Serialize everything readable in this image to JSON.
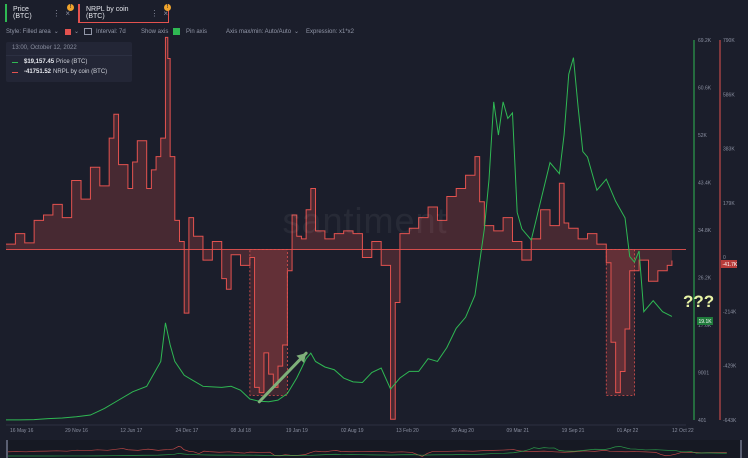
{
  "tabs": [
    {
      "label": "Price (BTC)",
      "color": "#2fb853",
      "badge": "!"
    },
    {
      "label": "NRPL by coin (BTC)",
      "color": "#e3524f",
      "badge": "!"
    }
  ],
  "toolbar": {
    "style_label": "Style: Filled area",
    "interval_label": "Interval: 7d",
    "show_axis_label": "Show axis",
    "pin_axis_label": "Pin axis",
    "axis_max_label": "Axis max/min: Auto/Auto",
    "expression_label": "Expression: x1*x2"
  },
  "tooltip": {
    "date": "13:00, October 12, 2022",
    "price_value": "$19,157.45",
    "price_label": "Price (BTC)",
    "nrpl_value": "-41751.52",
    "nrpl_label": "NRPL by coin (BTC)"
  },
  "watermark": "santiment",
  "annotation_text": "???",
  "colors": {
    "background": "#1b1e2b",
    "price": "#2fb853",
    "nrpl": "#e3524f",
    "nrpl_fill": "#4a2830",
    "badge": "#f0a42c",
    "arrow": "#7fb07a"
  },
  "chart_data": {
    "type": "line",
    "x_tick_labels": [
      "16 May 16",
      "29 Nov 16",
      "12 Jun 17",
      "24 Dec 17",
      "08 Jul 18",
      "19 Jan 19",
      "02 Aug 19",
      "13 Feb 20",
      "26 Aug 20",
      "09 Mar 21",
      "19 Sep 21",
      "01 Apr 22",
      "12 Oct 22"
    ],
    "series": [
      {
        "name": "Price (BTC)",
        "axis": "left",
        "axis_ticks": [
          "69.2K",
          "60.6K",
          "52K",
          "43.4K",
          "34.8K",
          "26.2K",
          "17.6K",
          "9001",
          "401"
        ],
        "last_value_label": "19.1K",
        "points": [
          [
            0,
            420
          ],
          [
            6,
            430
          ],
          [
            12,
            480
          ],
          [
            18,
            650
          ],
          [
            24,
            760
          ],
          [
            30,
            1000
          ],
          [
            36,
            1300
          ],
          [
            42,
            2500
          ],
          [
            48,
            4000
          ],
          [
            54,
            5500
          ],
          [
            60,
            6500
          ],
          [
            66,
            11000
          ],
          [
            68,
            18000
          ],
          [
            70,
            14000
          ],
          [
            72,
            11000
          ],
          [
            76,
            8500
          ],
          [
            80,
            7500
          ],
          [
            84,
            6500
          ],
          [
            88,
            6400
          ],
          [
            92,
            6300
          ],
          [
            96,
            6500
          ],
          [
            100,
            5800
          ],
          [
            104,
            4200
          ],
          [
            108,
            3800
          ],
          [
            112,
            3700
          ],
          [
            116,
            4000
          ],
          [
            120,
            5200
          ],
          [
            124,
            8000
          ],
          [
            128,
            11500
          ],
          [
            130,
            12500
          ],
          [
            132,
            11000
          ],
          [
            136,
            10000
          ],
          [
            140,
            9500
          ],
          [
            144,
            8000
          ],
          [
            148,
            7300
          ],
          [
            152,
            7200
          ],
          [
            156,
            9000
          ],
          [
            160,
            9800
          ],
          [
            164,
            6000
          ],
          [
            168,
            8000
          ],
          [
            172,
            9200
          ],
          [
            176,
            9200
          ],
          [
            180,
            11500
          ],
          [
            184,
            11000
          ],
          [
            188,
            13500
          ],
          [
            192,
            17000
          ],
          [
            196,
            19000
          ],
          [
            200,
            23000
          ],
          [
            204,
            35000
          ],
          [
            206,
            44000
          ],
          [
            208,
            58000
          ],
          [
            210,
            52000
          ],
          [
            212,
            58000
          ],
          [
            214,
            55000
          ],
          [
            216,
            56000
          ],
          [
            218,
            38000
          ],
          [
            220,
            35000
          ],
          [
            224,
            33000
          ],
          [
            228,
            40000
          ],
          [
            232,
            47000
          ],
          [
            236,
            45000
          ],
          [
            238,
            52000
          ],
          [
            240,
            63000
          ],
          [
            242,
            66000
          ],
          [
            244,
            57000
          ],
          [
            246,
            49000
          ],
          [
            248,
            48000
          ],
          [
            252,
            42000
          ],
          [
            256,
            44000
          ],
          [
            260,
            40000
          ],
          [
            264,
            37000
          ],
          [
            266,
            30000
          ],
          [
            268,
            29000
          ],
          [
            270,
            31000
          ],
          [
            272,
            20000
          ],
          [
            276,
            22000
          ],
          [
            280,
            20000
          ],
          [
            284,
            19157
          ]
        ]
      },
      {
        "name": "NRPL by coin (BTC)",
        "axis": "right",
        "axis_ticks": [
          "790K",
          "586K",
          "383K",
          "179K",
          "0",
          "-214K",
          "-429K",
          "-643K"
        ],
        "last_value_label": "-41.7K",
        "points": [
          [
            0,
            20000
          ],
          [
            4,
            60000
          ],
          [
            8,
            25000
          ],
          [
            12,
            110000
          ],
          [
            16,
            130000
          ],
          [
            20,
            170000
          ],
          [
            24,
            120000
          ],
          [
            28,
            260000
          ],
          [
            32,
            190000
          ],
          [
            36,
            310000
          ],
          [
            40,
            240000
          ],
          [
            44,
            420000
          ],
          [
            46,
            510000
          ],
          [
            48,
            320000
          ],
          [
            52,
            230000
          ],
          [
            54,
            330000
          ],
          [
            56,
            410000
          ],
          [
            60,
            230000
          ],
          [
            62,
            300000
          ],
          [
            64,
            350000
          ],
          [
            66,
            420000
          ],
          [
            68,
            800000
          ],
          [
            69,
            720000
          ],
          [
            70,
            350000
          ],
          [
            72,
            110000
          ],
          [
            74,
            30000
          ],
          [
            76,
            -240000
          ],
          [
            78,
            120000
          ],
          [
            80,
            50000
          ],
          [
            84,
            -40000
          ],
          [
            88,
            30000
          ],
          [
            92,
            -110000
          ],
          [
            94,
            -150000
          ],
          [
            96,
            -20000
          ],
          [
            100,
            -60000
          ],
          [
            104,
            -30000
          ],
          [
            106,
            -520000
          ],
          [
            108,
            -540000
          ],
          [
            110,
            -390000
          ],
          [
            112,
            -470000
          ],
          [
            114,
            -520000
          ],
          [
            116,
            -440000
          ],
          [
            118,
            -360000
          ],
          [
            120,
            -80000
          ],
          [
            122,
            130000
          ],
          [
            124,
            50000
          ],
          [
            126,
            40000
          ],
          [
            128,
            150000
          ],
          [
            130,
            230000
          ],
          [
            132,
            70000
          ],
          [
            136,
            40000
          ],
          [
            140,
            60000
          ],
          [
            144,
            70000
          ],
          [
            148,
            60000
          ],
          [
            152,
            -30000
          ],
          [
            156,
            30000
          ],
          [
            160,
            -60000
          ],
          [
            164,
            -640000
          ],
          [
            166,
            -200000
          ],
          [
            168,
            60000
          ],
          [
            172,
            80000
          ],
          [
            176,
            120000
          ],
          [
            180,
            160000
          ],
          [
            184,
            110000
          ],
          [
            188,
            200000
          ],
          [
            192,
            230000
          ],
          [
            196,
            280000
          ],
          [
            200,
            350000
          ],
          [
            202,
            180000
          ],
          [
            204,
            90000
          ],
          [
            208,
            70000
          ],
          [
            212,
            120000
          ],
          [
            216,
            30000
          ],
          [
            220,
            -40000
          ],
          [
            224,
            40000
          ],
          [
            228,
            150000
          ],
          [
            232,
            90000
          ],
          [
            236,
            250000
          ],
          [
            238,
            100000
          ],
          [
            240,
            80000
          ],
          [
            244,
            40000
          ],
          [
            248,
            60000
          ],
          [
            252,
            20000
          ],
          [
            256,
            -50000
          ],
          [
            258,
            -350000
          ],
          [
            260,
            -540000
          ],
          [
            262,
            -460000
          ],
          [
            264,
            -300000
          ],
          [
            266,
            -80000
          ],
          [
            270,
            -40000
          ],
          [
            274,
            -120000
          ],
          [
            278,
            -80000
          ],
          [
            282,
            -60000
          ],
          [
            284,
            -41751
          ]
        ]
      }
    ],
    "highlight_regions": [
      {
        "series": "NRPL by coin (BTC)",
        "x_range": [
          104,
          120
        ],
        "nrpl_range": [
          -550000,
          0
        ]
      },
      {
        "series": "NRPL by coin (BTC)",
        "x_range": [
          256,
          268
        ],
        "nrpl_range": [
          -550000,
          0
        ]
      }
    ],
    "annotations": [
      {
        "type": "arrow",
        "from": [
          108,
          3700
        ],
        "to": [
          128,
          12500
        ]
      },
      {
        "type": "text",
        "text": "???",
        "at": [
          272,
          22000
        ]
      }
    ],
    "xlabel": "",
    "ylabel": "",
    "y_left_lim": [
      401,
      69200
    ],
    "y_right_lim": [
      -643000,
      790000
    ],
    "x_lim": [
      0,
      290
    ],
    "grid": false,
    "legend": "top-left"
  }
}
